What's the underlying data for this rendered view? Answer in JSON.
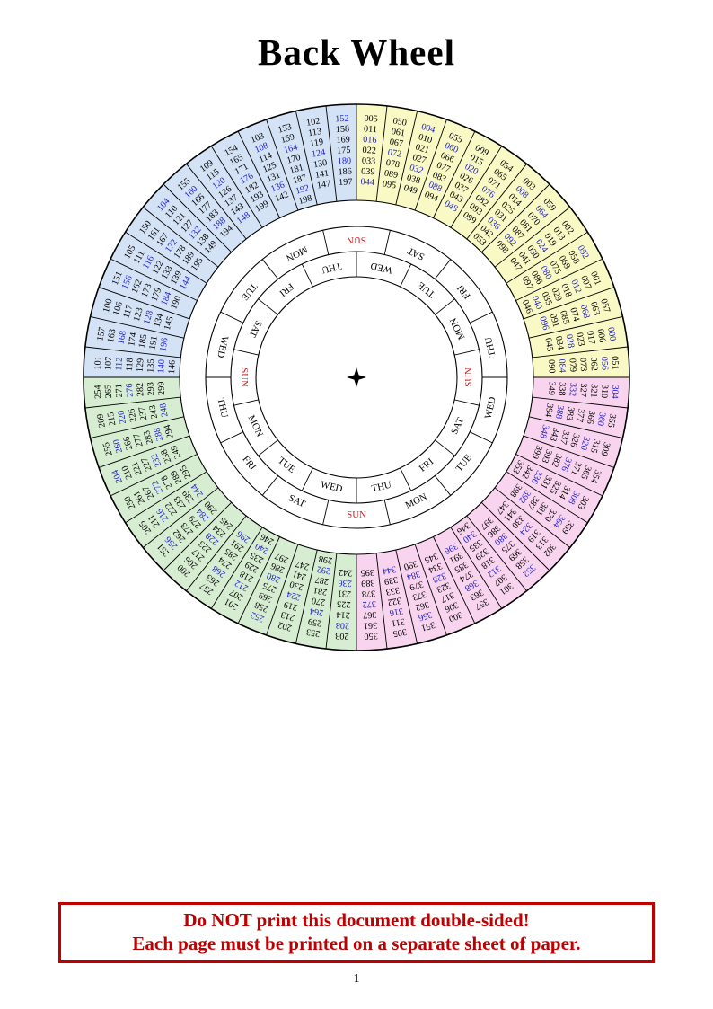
{
  "page": {
    "title": "Back Wheel",
    "page_number": "1",
    "warning": {
      "line1": "Do NOT print this document double-sided!",
      "line2": "Each page must be printed on a separate sheet of paper.",
      "color": "#bf0000"
    }
  },
  "wheel": {
    "icons": {
      "center": "four-pointed-star-icon"
    },
    "colors": {
      "text": "#000000",
      "line": "#000000",
      "leap_year_text": "#2222cc",
      "sunday_text": "#cc2222",
      "ring_yellow": "#f9f9c5",
      "ring_pink": "#f8d4ee",
      "ring_green": "#d7edd2",
      "ring_blue": "#d4e2f5"
    },
    "day_rings": {
      "outer": {
        "start_angle": 0,
        "labels": [
          "SUN",
          "SAT",
          "FRI",
          "THU",
          "WED",
          "TUE",
          "MON",
          "SUN",
          "SAT",
          "FRI",
          "THU",
          "WED",
          "TUE",
          "MON"
        ]
      },
      "inner": {
        "start_angle": 90,
        "labels": [
          "SUN",
          "SAT",
          "FRI",
          "THU",
          "WED",
          "TUE",
          "MON",
          "SUN",
          "SAT",
          "FRI",
          "THU",
          "WED",
          "TUE",
          "MON"
        ]
      }
    },
    "quadrants": [
      {
        "name": "years-000-099",
        "color": "#f9f9c5",
        "start_angle": 0,
        "sectors": [
          {
            "day": "MON",
            "columns": [
              [
                "005",
                "011",
                "016",
                "022",
                "033",
                "039",
                "044"
              ],
              [
                "050",
                "061",
                "067",
                "072",
                "078",
                "089",
                "095"
              ]
            ]
          },
          {
            "day": "SUN",
            "columns": [
              [
                "004",
                "010",
                "021",
                "027",
                "032",
                "038",
                "049"
              ],
              [
                "055",
                "060",
                "066",
                "077",
                "083",
                "088",
                "094"
              ]
            ]
          },
          {
            "day": "SAT",
            "columns": [
              [
                "009",
                "015",
                "020",
                "026",
                "037",
                "043",
                "048"
              ],
              [
                "054",
                "065",
                "071",
                "076",
                "082",
                "093",
                "099"
              ]
            ]
          },
          {
            "day": "FRI",
            "columns": [
              [
                "003",
                "008",
                "014",
                "025",
                "031",
                "036",
                "042",
                "053"
              ],
              [
                "059",
                "064",
                "070",
                "081",
                "087",
                "092",
                "098"
              ]
            ]
          },
          {
            "day": "THU",
            "columns": [
              [
                "002",
                "013",
                "019",
                "024",
                "030",
                "041",
                "047"
              ],
              [
                "052",
                "058",
                "069",
                "075",
                "080",
                "086",
                "097"
              ]
            ]
          },
          {
            "day": "WED",
            "columns": [
              [
                "001",
                "007",
                "012",
                "018",
                "029",
                "035",
                "040",
                "046"
              ],
              [
                "057",
                "063",
                "068",
                "074",
                "085",
                "091",
                "096"
              ]
            ]
          },
          {
            "day": "TUE",
            "columns": [
              [
                "000",
                "006",
                "017",
                "023",
                "028",
                "034",
                "045"
              ],
              [
                "051",
                "056",
                "062",
                "073",
                "079",
                "084",
                "090"
              ]
            ]
          }
        ]
      },
      {
        "name": "years-300-399",
        "color": "#f8d4ee",
        "start_angle": 90,
        "sectors": [
          {
            "day": "MON",
            "columns": [
              [
                "304",
                "310",
                "321",
                "327",
                "332",
                "338",
                "349"
              ],
              [
                "355",
                "360",
                "366",
                "377",
                "383",
                "388",
                "394"
              ]
            ]
          },
          {
            "day": "SUN",
            "columns": [
              [
                "309",
                "315",
                "320",
                "326",
                "337",
                "343",
                "348"
              ],
              [
                "354",
                "365",
                "371",
                "376",
                "382",
                "393",
                "399"
              ]
            ]
          },
          {
            "day": "SAT",
            "columns": [
              [
                "303",
                "308",
                "314",
                "325",
                "331",
                "336",
                "342",
                "353"
              ],
              [
                "359",
                "364",
                "370",
                "381",
                "387",
                "392",
                "398"
              ]
            ]
          },
          {
            "day": "FRI",
            "columns": [
              [
                "302",
                "313",
                "319",
                "324",
                "330",
                "341",
                "347"
              ],
              [
                "352",
                "358",
                "369",
                "375",
                "380",
                "386",
                "397"
              ]
            ]
          },
          {
            "day": "THU",
            "columns": [
              [
                "301",
                "307",
                "312",
                "318",
                "329",
                "335",
                "340",
                "346"
              ],
              [
                "357",
                "363",
                "368",
                "374",
                "385",
                "391",
                "396"
              ]
            ]
          },
          {
            "day": "WED",
            "columns": [
              [
                "300",
                "306",
                "317",
                "323",
                "328",
                "334",
                "345"
              ],
              [
                "351",
                "356",
                "362",
                "373",
                "379",
                "384",
                "390"
              ]
            ]
          },
          {
            "day": "TUE",
            "columns": [
              [
                "305",
                "311",
                "316",
                "322",
                "333",
                "339",
                "344"
              ],
              [
                "350",
                "361",
                "367",
                "372",
                "378",
                "389",
                "395"
              ]
            ]
          }
        ]
      },
      {
        "name": "years-200-299",
        "color": "#d7edd2",
        "start_angle": 180,
        "sectors": [
          {
            "day": "MON",
            "columns": [
              [
                "203",
                "208",
                "214",
                "225",
                "231",
                "236",
                "242"
              ],
              [
                "253",
                "259",
                "264",
                "270",
                "281",
                "287",
                "292",
                "298"
              ]
            ]
          },
          {
            "day": "SUN",
            "columns": [
              [
                "202",
                "213",
                "219",
                "224",
                "230",
                "241",
                "247"
              ],
              [
                "252",
                "258",
                "269",
                "275",
                "280",
                "286",
                "297"
              ]
            ]
          },
          {
            "day": "SAT",
            "columns": [
              [
                "201",
                "207",
                "212",
                "218",
                "229",
                "235",
                "240",
                "246"
              ],
              [
                "257",
                "263",
                "268",
                "274",
                "285",
                "291",
                "296"
              ]
            ]
          },
          {
            "day": "FRI",
            "columns": [
              [
                "200",
                "206",
                "217",
                "223",
                "228",
                "234",
                "245"
              ],
              [
                "251",
                "256",
                "262",
                "273",
                "279",
                "284",
                "290"
              ]
            ]
          },
          {
            "day": "THU",
            "columns": [
              [
                "205",
                "211",
                "216",
                "222",
                "233",
                "239",
                "244"
              ],
              [
                "250",
                "261",
                "267",
                "272",
                "278",
                "289",
                "295"
              ]
            ]
          },
          {
            "day": "WED",
            "columns": [
              [
                "204",
                "210",
                "221",
                "227",
                "232",
                "238",
                "249"
              ],
              [
                "255",
                "260",
                "266",
                "277",
                "283",
                "288",
                "294"
              ]
            ]
          },
          {
            "day": "TUE",
            "columns": [
              [
                "209",
                "215",
                "220",
                "226",
                "237",
                "243",
                "248"
              ],
              [
                "254",
                "265",
                "271",
                "276",
                "282",
                "293",
                "299"
              ]
            ]
          }
        ]
      },
      {
        "name": "years-100-199",
        "color": "#d4e2f5",
        "start_angle": 270,
        "sectors": [
          {
            "day": "MON",
            "columns": [
              [
                "101",
                "107",
                "112",
                "118",
                "129",
                "135",
                "140",
                "146"
              ],
              [
                "157",
                "163",
                "168",
                "174",
                "185",
                "191",
                "196"
              ]
            ]
          },
          {
            "day": "SUN",
            "columns": [
              [
                "100",
                "106",
                "117",
                "123",
                "128",
                "134",
                "145"
              ],
              [
                "151",
                "156",
                "162",
                "173",
                "179",
                "184",
                "190"
              ]
            ]
          },
          {
            "day": "SAT",
            "columns": [
              [
                "105",
                "111",
                "116",
                "122",
                "133",
                "139",
                "144"
              ],
              [
                "150",
                "161",
                "167",
                "172",
                "178",
                "189",
                "195"
              ]
            ]
          },
          {
            "day": "FRI",
            "columns": [
              [
                "104",
                "110",
                "121",
                "127",
                "132",
                "138",
                "149"
              ],
              [
                "155",
                "160",
                "166",
                "177",
                "183",
                "188",
                "194"
              ]
            ]
          },
          {
            "day": "THU",
            "columns": [
              [
                "109",
                "115",
                "120",
                "126",
                "137",
                "143",
                "148"
              ],
              [
                "154",
                "165",
                "171",
                "176",
                "182",
                "193",
                "199"
              ]
            ]
          },
          {
            "day": "WED",
            "columns": [
              [
                "103",
                "108",
                "114",
                "125",
                "131",
                "136",
                "142"
              ],
              [
                "153",
                "159",
                "164",
                "170",
                "181",
                "187",
                "192",
                "198"
              ]
            ]
          },
          {
            "day": "TUE",
            "columns": [
              [
                "102",
                "113",
                "119",
                "124",
                "130",
                "141",
                "147"
              ],
              [
                "152",
                "158",
                "169",
                "175",
                "180",
                "186",
                "197"
              ]
            ]
          }
        ]
      }
    ]
  }
}
